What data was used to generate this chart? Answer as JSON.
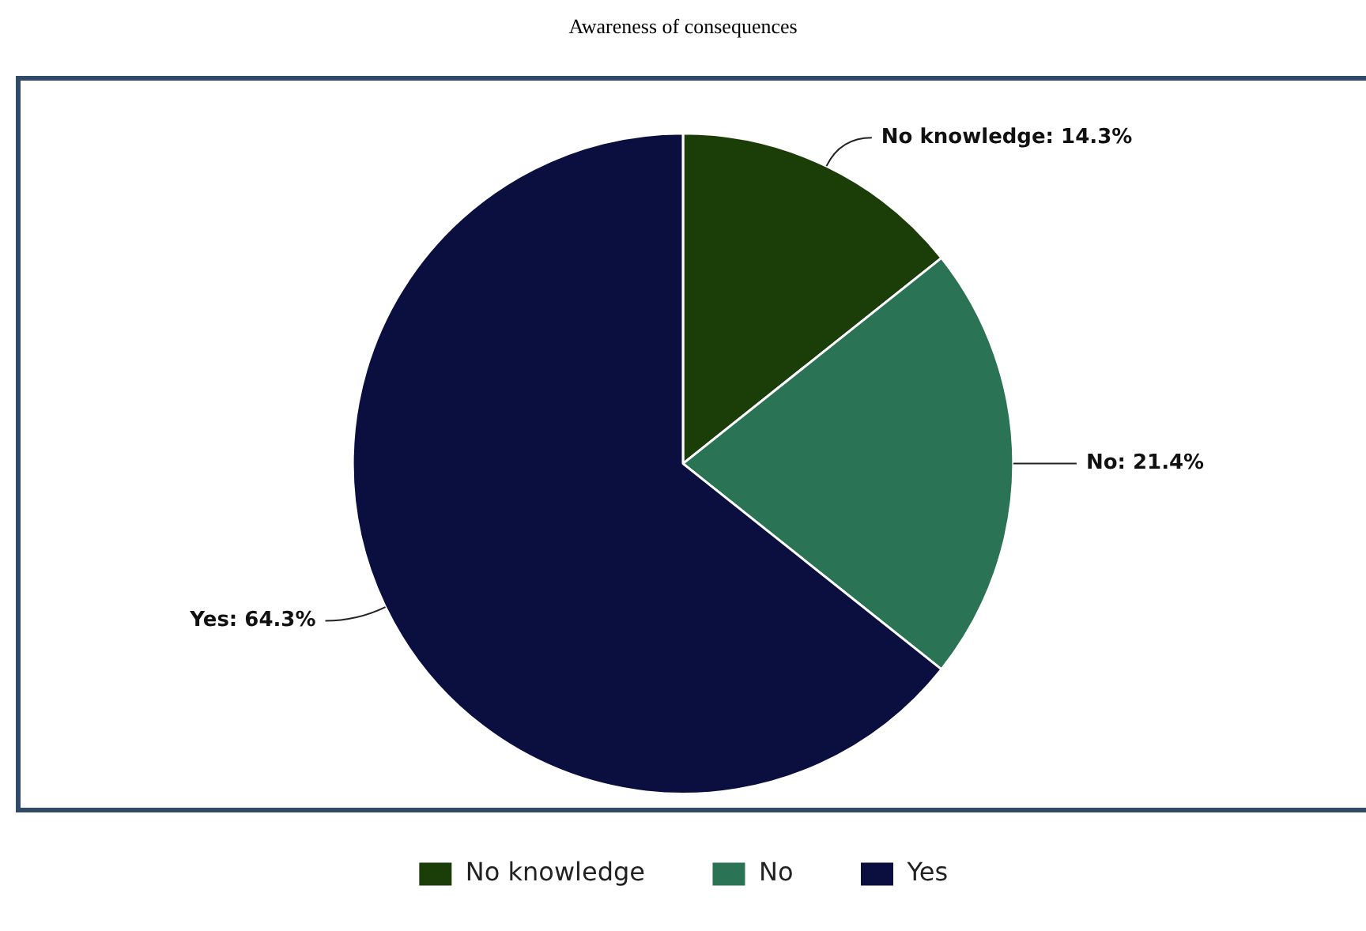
{
  "chart_data": {
    "type": "pie",
    "title": "Awareness of consequences",
    "categories": [
      "No knowledge",
      "No",
      "Yes"
    ],
    "values": [
      14.3,
      21.4,
      64.3
    ],
    "value_labels": [
      "No knowledge: 14.3%",
      "No: 21.4%",
      "Yes: 64.3%"
    ],
    "colors": [
      "#1b3d08",
      "#2a7355",
      "#0b0f3f"
    ],
    "legend": "bottom"
  }
}
